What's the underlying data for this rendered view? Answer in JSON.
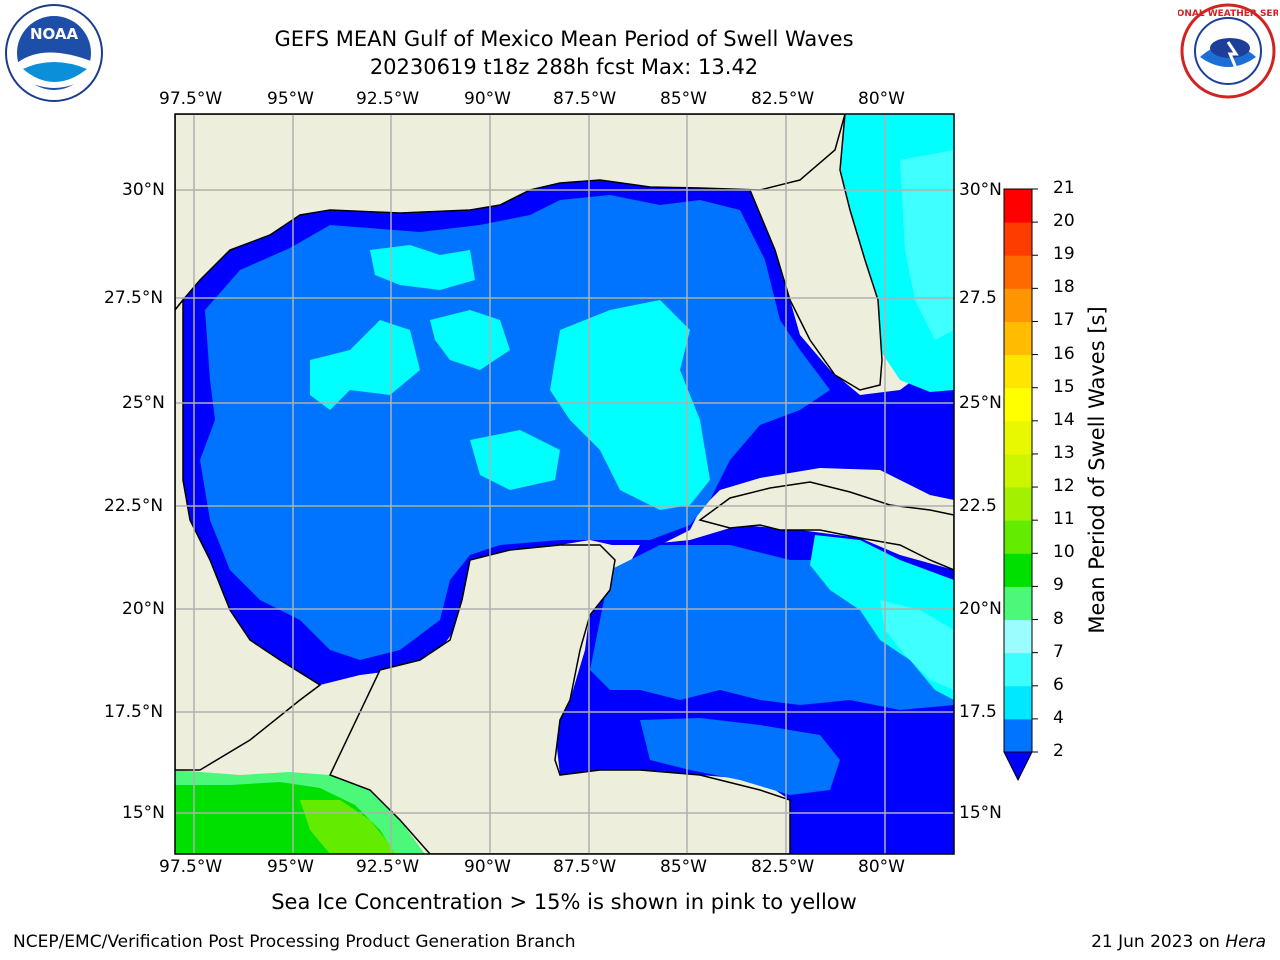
{
  "header": {
    "title": "GEFS MEAN Gulf of Mexico Mean Period of Swell Waves",
    "subtitle": "20230619 t18z 288h fcst   Max: 13.42"
  },
  "logos": {
    "noaa": {
      "text": "NOAA",
      "icon": "noaa-logo"
    },
    "nws": {
      "text": "NATIONAL WEATHER SERVICE",
      "icon": "nws-logo"
    }
  },
  "axes": {
    "lon_labels": [
      "97.5°W",
      "95°W",
      "92.5°W",
      "90°W",
      "87.5°W",
      "85°W",
      "82.5°W",
      "80°W"
    ],
    "lat_labels": [
      "30°N",
      "27.5°N",
      "25°N",
      "22.5°N",
      "20°N",
      "17.5°N",
      "15°N"
    ],
    "right_lat_labels": [
      "30°N",
      "27.5",
      "25°N",
      "22.5",
      "20°N",
      "17.5",
      "15°N"
    ]
  },
  "colorbar": {
    "title": "Mean Period of Swell Waves [s]",
    "levels": [
      "2",
      "4",
      "6",
      "7",
      "8",
      "9",
      "10",
      "11",
      "12",
      "13",
      "14",
      "15",
      "16",
      "17",
      "18",
      "19",
      "20",
      "21"
    ],
    "colors": [
      "#0074ff",
      "#00e8ff",
      "#3cfeff",
      "#9afeff",
      "#4cf87a",
      "#00e000",
      "#63ec00",
      "#a3f000",
      "#cbf600",
      "#e8f800",
      "#ffff00",
      "#ffe600",
      "#ffbc00",
      "#ff9500",
      "#ff6a00",
      "#ff3c00",
      "#ff0000"
    ],
    "extend_color": "#0000ff"
  },
  "colors": {
    "land": "#eeeedc",
    "band_2_4": "#0000ff",
    "band_4_6": "#0074ff",
    "band_6_7": "#00ffff",
    "band_7_8": "#40ffff",
    "band_10_11": "#4cf87a",
    "band_11_12": "#00e000",
    "band_12_13": "#63ec00",
    "grid": "#b0b0b0"
  },
  "footer": {
    "note": "Sea Ice Concentration > 15% is shown in pink to yellow",
    "left": "NCEP/EMC/Verification Post Processing Product Generation Branch",
    "date": "21 Jun 2023 on ",
    "host": "Hera"
  }
}
